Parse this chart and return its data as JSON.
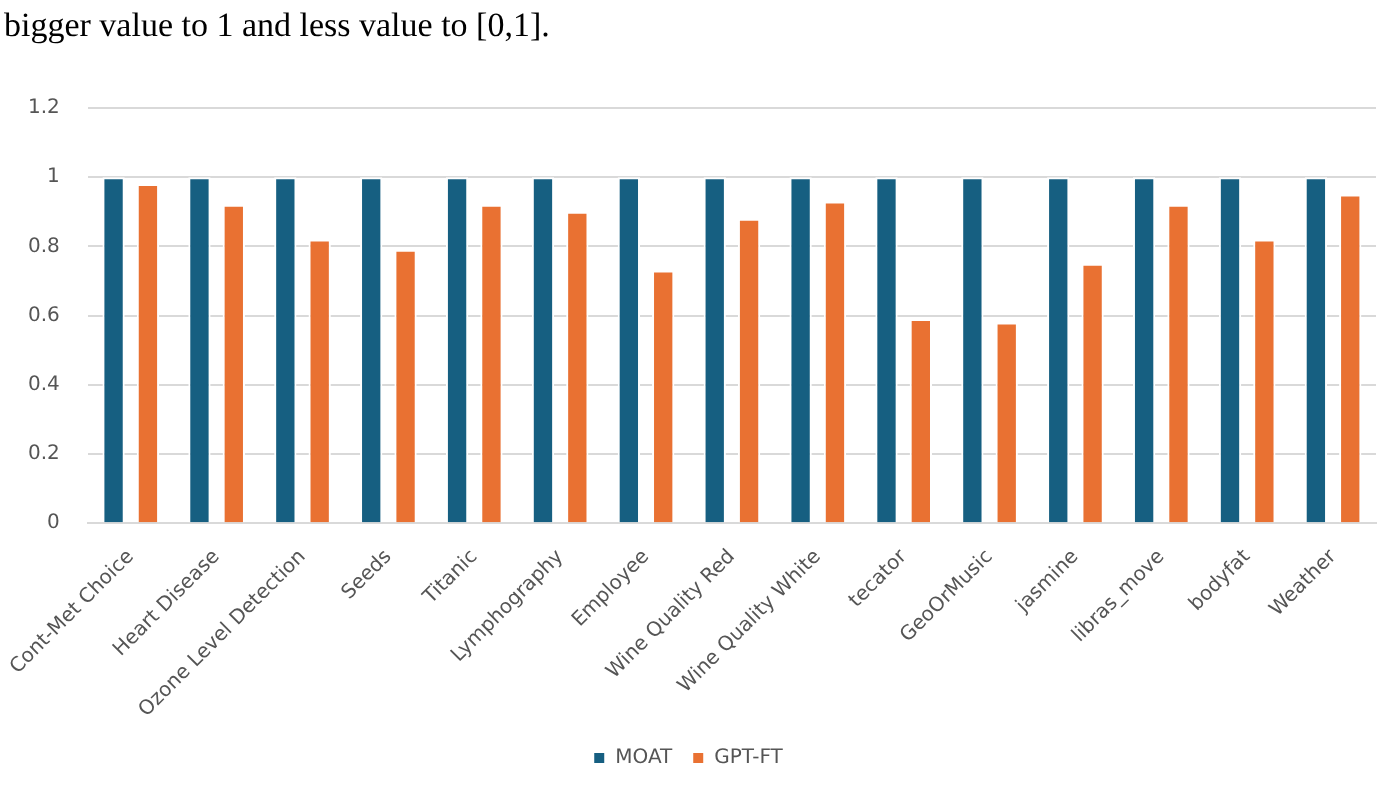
{
  "chart_data": {
    "type": "bar",
    "annotations": [
      "bigger value to 1 and less value to [0,1]."
    ],
    "categories": [
      "Cont-Met Choice",
      "Heart Disease",
      "Ozone Level Detection",
      "Seeds",
      "Titanic",
      "Lymphography",
      "Employee",
      "Wine Quality Red",
      "Wine Quality White",
      "tecator",
      "GeoOrMusic",
      "jasmine",
      "libras_move",
      "bodyfat",
      "Weather"
    ],
    "series": [
      {
        "name": "MOAT",
        "color": "#165f81",
        "values": [
          1,
          1,
          1,
          1,
          1,
          1,
          1,
          1,
          1,
          1,
          1,
          1,
          1,
          1,
          1
        ]
      },
      {
        "name": "GPT-FT",
        "color": "#e97132",
        "values": [
          0.98,
          0.92,
          0.82,
          0.79,
          0.92,
          0.9,
          0.73,
          0.88,
          0.93,
          0.59,
          0.58,
          0.75,
          0.92,
          0.82,
          0.95
        ]
      }
    ],
    "ylim": [
      0,
      1.2
    ],
    "yticks": [
      0,
      0.2,
      0.4,
      0.6,
      0.8,
      1,
      1.2
    ],
    "grid": "y",
    "legend": "bottom"
  }
}
